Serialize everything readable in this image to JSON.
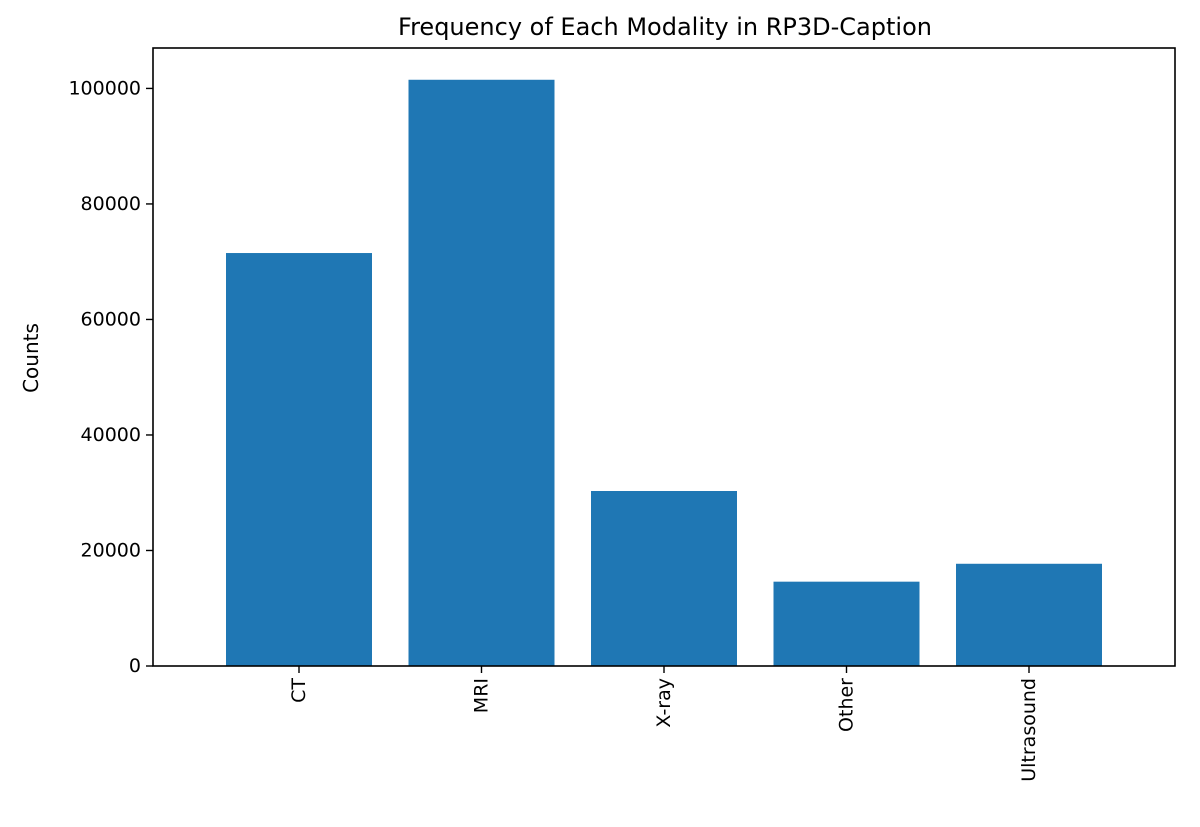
{
  "chart_data": {
    "type": "bar",
    "title": "Frequency of Each Modality in RP3D-Caption",
    "xlabel": "",
    "ylabel": "Counts",
    "categories": [
      "CT",
      "MRI",
      "X-ray",
      "Other",
      "Ultrasound"
    ],
    "values": [
      71500,
      101500,
      30300,
      14600,
      17700
    ],
    "ylim": [
      0,
      107000
    ],
    "yticks": [
      0,
      20000,
      40000,
      60000,
      80000,
      100000
    ],
    "ytick_labels": [
      "0",
      "20000",
      "40000",
      "60000",
      "80000",
      "100000"
    ],
    "bar_color": "#1f77b4",
    "grid": false,
    "xtick_rotation": "vertical"
  }
}
